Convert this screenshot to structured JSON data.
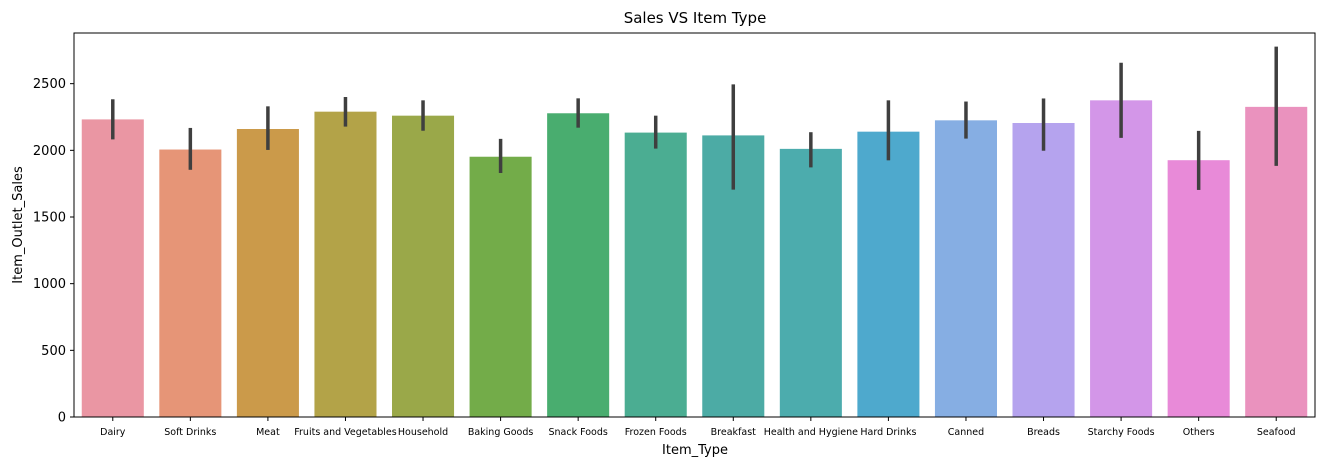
{
  "chart_data": {
    "type": "bar",
    "title": "Sales VS Item Type",
    "xlabel": "Item_Type",
    "ylabel": "Item_Outlet_Sales",
    "ylim": [
      0,
      2880
    ],
    "yticks": [
      0,
      500,
      1000,
      1500,
      2000,
      2500
    ],
    "grid": false,
    "categories": [
      "Dairy",
      "Soft Drinks",
      "Meat",
      "Fruits and Vegetables",
      "Household",
      "Baking Goods",
      "Snack Foods",
      "Frozen Foods",
      "Breakfast",
      "Health and Hygiene",
      "Hard Drinks",
      "Canned",
      "Breads",
      "Starchy Foods",
      "Others",
      "Seafood"
    ],
    "values": [
      2232,
      2006,
      2160,
      2290,
      2260,
      1952,
      2278,
      2133,
      2112,
      2011,
      2140,
      2225,
      2205,
      2375,
      1926,
      2326
    ],
    "error_low": [
      2082,
      1854,
      2003,
      2178,
      2147,
      1830,
      2170,
      2013,
      1705,
      1872,
      1925,
      2088,
      1997,
      2093,
      1703,
      1883
    ],
    "error_high": [
      2383,
      2168,
      2330,
      2400,
      2375,
      2086,
      2390,
      2260,
      2495,
      2136,
      2375,
      2366,
      2389,
      2657,
      2146,
      2778
    ],
    "colors": [
      "#ea96a3",
      "#e69577",
      "#cb9a4a",
      "#b3a348",
      "#9aa849",
      "#73ac49",
      "#49ad6f",
      "#4bad92",
      "#4caba5",
      "#4cacad",
      "#4ea9cd",
      "#86aee3",
      "#b5a3ee",
      "#d396e8",
      "#e88ad8",
      "#ea92be"
    ]
  }
}
